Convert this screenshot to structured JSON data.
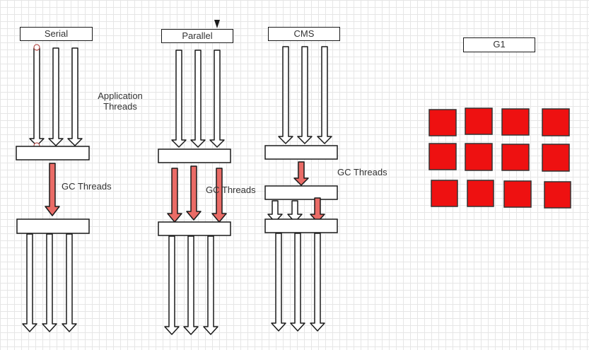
{
  "labels": {
    "serial": "Serial",
    "parallel": "Parallel",
    "cms": "CMS",
    "g1": "G1",
    "application_threads_line1": "Application",
    "application_threads_line2": "Threads",
    "gc_threads_serial": "GC Threads",
    "gc_threads_parallel": "GC Threads",
    "gc_threads_cms": "GC Threads"
  },
  "colors": {
    "gc_arrow_fill": "#ea6b66",
    "region_fill": "#ee1111",
    "outline": "#1a1a1a"
  }
}
